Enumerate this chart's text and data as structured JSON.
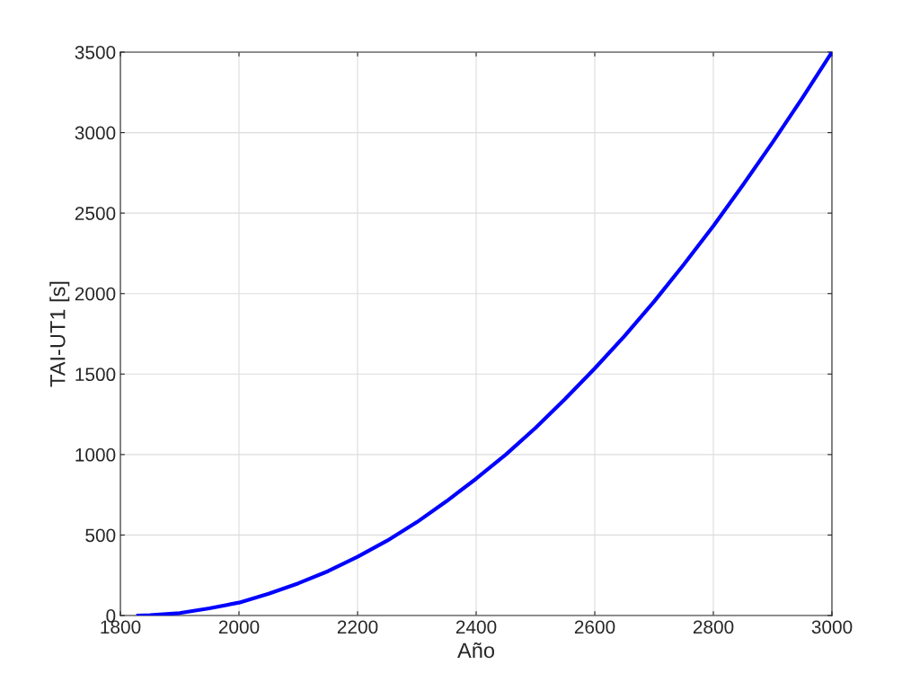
{
  "chart_data": {
    "type": "line",
    "xlabel": "Año",
    "ylabel": "TAI-UT1 [s]",
    "x": [
      1830,
      1850,
      1900,
      1950,
      2000,
      2050,
      2100,
      2150,
      2200,
      2250,
      2300,
      2350,
      2400,
      2450,
      2500,
      2550,
      2600,
      2650,
      2700,
      2750,
      2800,
      2850,
      2900,
      2950,
      3000
    ],
    "series": [
      {
        "color": "#0000ff",
        "values": [
          0,
          3,
          15,
          45,
          80,
          135,
          200,
          275,
          365,
          465,
          580,
          710,
          850,
          1000,
          1165,
          1345,
          1535,
          1735,
          1950,
          2180,
          2420,
          2675,
          2940,
          3215,
          3500
        ]
      }
    ],
    "xlim": [
      1800,
      3000
    ],
    "xticks": [
      1800,
      2000,
      2200,
      2400,
      2600,
      2800,
      3000
    ],
    "ylim": [
      0,
      3500
    ],
    "yticks": [
      0,
      500,
      1000,
      1500,
      2000,
      2500,
      3000,
      3500
    ],
    "grid": true,
    "legend": false,
    "marker": "none",
    "line_style": "solid"
  }
}
